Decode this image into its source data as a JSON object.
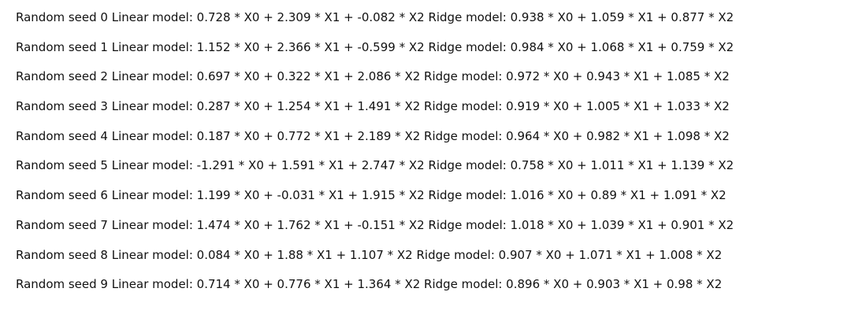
{
  "output": {
    "lines": [
      "Random seed 0 Linear model: 0.728 * X0 + 2.309 * X1 + -0.082 * X2 Ridge model: 0.938 * X0 + 1.059 * X1 + 0.877 * X2",
      "Random seed 1 Linear model: 1.152 * X0 + 2.366 * X1 + -0.599 * X2 Ridge model: 0.984 * X0 + 1.068 * X1 + 0.759 * X2",
      "Random seed 2 Linear model: 0.697 * X0 + 0.322 * X1 + 2.086 * X2 Ridge model: 0.972 * X0 + 0.943 * X1 + 1.085 * X2",
      "Random seed 3 Linear model: 0.287 * X0 + 1.254 * X1 + 1.491 * X2 Ridge model: 0.919 * X0 + 1.005 * X1 + 1.033 * X2",
      "Random seed 4 Linear model: 0.187 * X0 + 0.772 * X1 + 2.189 * X2 Ridge model: 0.964 * X0 + 0.982 * X1 + 1.098 * X2",
      "Random seed 5 Linear model: -1.291 * X0 + 1.591 * X1 + 2.747 * X2 Ridge model: 0.758 * X0 + 1.011 * X1 + 1.139 * X2",
      "Random seed 6 Linear model: 1.199 * X0 + -0.031 * X1 + 1.915 * X2 Ridge model: 1.016 * X0 + 0.89 * X1 + 1.091 * X2",
      "Random seed 7 Linear model: 1.474 * X0 + 1.762 * X1 + -0.151 * X2 Ridge model: 1.018 * X0 + 1.039 * X1 + 0.901 * X2",
      "Random seed 8 Linear model: 0.084 * X0 + 1.88 * X1 + 1.107 * X2 Ridge model: 0.907 * X0 + 1.071 * X1 + 1.008 * X2",
      "Random seed 9 Linear model: 0.714 * X0 + 0.776 * X1 + 1.364 * X2 Ridge model: 0.896 * X0 + 0.903 * X1 + 0.98 * X2"
    ]
  }
}
